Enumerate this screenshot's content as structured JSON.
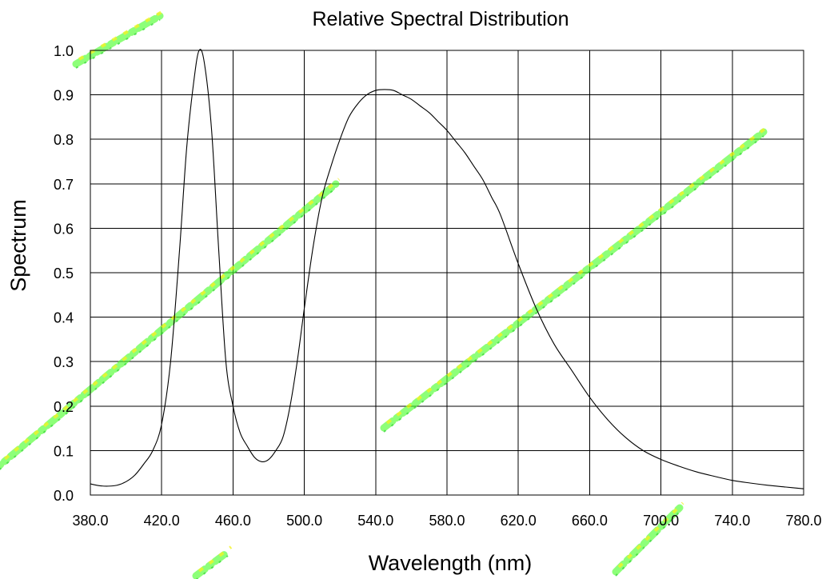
{
  "chart_data": {
    "type": "line",
    "title": "Relative Spectral Distribution",
    "xlabel": "Wavelength (nm)",
    "ylabel": "Spectrum",
    "xlim": [
      380,
      780
    ],
    "ylim": [
      0,
      1
    ],
    "grid": true,
    "legend": "none",
    "x_ticks": [
      380,
      420,
      460,
      500,
      540,
      580,
      620,
      660,
      700,
      740,
      780
    ],
    "x_tick_labels": [
      "380.0",
      "420.0",
      "460.0",
      "500.0",
      "540.0",
      "580.0",
      "620.0",
      "660.0",
      "700.0",
      "740.0",
      "780.0"
    ],
    "y_ticks": [
      0,
      0.1,
      0.2,
      0.3,
      0.4,
      0.5,
      0.6,
      0.7,
      0.8,
      0.9,
      1.0
    ],
    "y_tick_labels": [
      "0.0",
      "0.1",
      "0.2",
      "0.3",
      "0.4",
      "0.5",
      "0.6",
      "0.7",
      "0.8",
      "0.9",
      "1.0"
    ],
    "series": [
      {
        "x": [
          380,
          385,
          390,
          395,
          400,
          405,
          410,
          415,
          420,
          425,
          430,
          434,
          438,
          441,
          444,
          448,
          452,
          456,
          460,
          464,
          468,
          472,
          476,
          480,
          484,
          488,
          492,
          496,
          500,
          505,
          510,
          515,
          520,
          525,
          530,
          535,
          540,
          545,
          550,
          555,
          560,
          565,
          570,
          575,
          580,
          585,
          590,
          595,
          600,
          605,
          610,
          620,
          630,
          640,
          650,
          660,
          670,
          680,
          690,
          700,
          710,
          720,
          730,
          740,
          750,
          760,
          770,
          780
        ],
        "y": [
          0.025,
          0.021,
          0.02,
          0.022,
          0.03,
          0.045,
          0.07,
          0.1,
          0.16,
          0.3,
          0.55,
          0.78,
          0.93,
          1.0,
          0.97,
          0.82,
          0.55,
          0.3,
          0.2,
          0.14,
          0.11,
          0.085,
          0.075,
          0.08,
          0.1,
          0.13,
          0.2,
          0.3,
          0.42,
          0.56,
          0.67,
          0.74,
          0.8,
          0.85,
          0.88,
          0.9,
          0.91,
          0.912,
          0.91,
          0.9,
          0.89,
          0.875,
          0.86,
          0.84,
          0.82,
          0.795,
          0.77,
          0.74,
          0.71,
          0.67,
          0.63,
          0.52,
          0.42,
          0.34,
          0.28,
          0.22,
          0.17,
          0.13,
          0.1,
          0.08,
          0.065,
          0.052,
          0.042,
          0.033,
          0.027,
          0.022,
          0.018,
          0.014
        ]
      }
    ]
  }
}
